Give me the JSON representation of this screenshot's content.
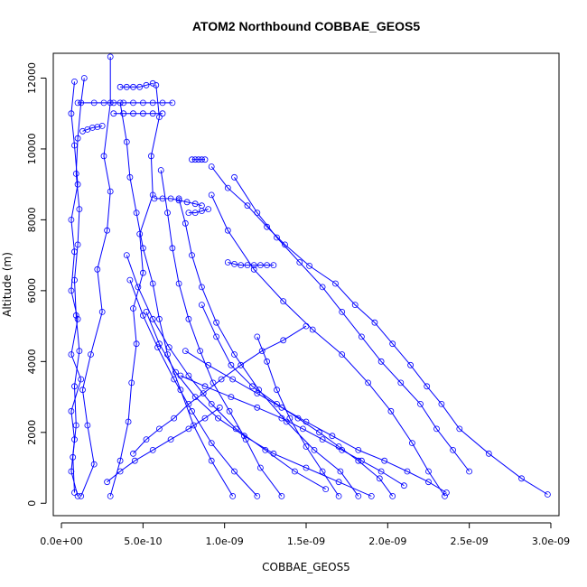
{
  "chart_data": {
    "type": "line",
    "title": "ATOM2 Northbound COBBAE_GEOS5",
    "xlabel": "COBBAE_GEOS5",
    "ylabel": "Altitude (m)",
    "xlim": [
      -5e-11,
      3.05e-09
    ],
    "ylim": [
      -350,
      12700
    ],
    "x_ticks": [
      0,
      5e-10,
      1e-09,
      1.5e-09,
      2e-09,
      2.5e-09,
      3e-09
    ],
    "x_tick_labels": [
      "0.0e+00",
      "5.0e-10",
      "1.0e-09",
      "1.5e-09",
      "2.0e-09",
      "2.5e-09",
      "3.0e-09"
    ],
    "y_ticks": [
      0,
      2000,
      4000,
      6000,
      8000,
      10000,
      12000
    ],
    "y_tick_labels": [
      "0",
      "2000",
      "4000",
      "6000",
      "8000",
      "10000",
      "12000"
    ],
    "grid": false,
    "line_color": "#0000ff",
    "marker": "open-circle",
    "series": [
      {
        "x": [
          1e-10,
          6e-11,
          8e-11,
          6e-11,
          1.2e-10,
          6e-11,
          1e-10,
          6e-11,
          8e-11,
          6e-11,
          1e-10,
          8e-11,
          6e-11,
          8e-11
        ],
        "y": [
          200,
          900,
          1800,
          2600,
          3500,
          4200,
          5200,
          6000,
          7100,
          8000,
          9000,
          10100,
          11000,
          11900
        ]
      },
      {
        "x": [
          8e-11,
          7e-11,
          9e-11,
          8e-11,
          1.1e-10,
          9e-11,
          8e-11,
          1e-10,
          1.1e-10,
          9e-11,
          1e-10,
          1.2e-10,
          1.4e-10
        ],
        "y": [
          300,
          1300,
          2200,
          3300,
          4300,
          5300,
          6300,
          7300,
          8300,
          9300,
          10300,
          11300,
          12000
        ]
      },
      {
        "x": [
          1.2e-10,
          2e-10,
          1.6e-10,
          1.3e-10,
          1.8e-10,
          2.5e-10,
          2.2e-10,
          2.8e-10,
          3e-10,
          2.6e-10,
          3e-10,
          3e-10
        ],
        "y": [
          200,
          1100,
          2200,
          3200,
          4200,
          5400,
          6600,
          7700,
          8800,
          9800,
          11300,
          12600
        ]
      },
      {
        "x": [
          3e-10,
          3.6e-10,
          4.1e-10,
          4.3e-10,
          4.6e-10,
          4.4e-10,
          5e-10,
          4.8e-10,
          5.6e-10,
          5.5e-10,
          6e-10,
          5.8e-10
        ],
        "y": [
          200,
          1200,
          2300,
          3400,
          4500,
          5500,
          6500,
          7600,
          8700,
          9800,
          10900,
          11800
        ]
      },
      {
        "x": [
          1.05e-09,
          9.2e-10,
          8.1e-10,
          7.3e-10,
          6.5e-10,
          6e-10,
          5.6e-10,
          5e-10,
          4.6e-10,
          4.2e-10,
          4e-10,
          3.6e-10
        ],
        "y": [
          200,
          1200,
          2200,
          3200,
          4200,
          5200,
          6200,
          7200,
          8200,
          9200,
          10200,
          11300
        ]
      },
      {
        "x": [
          1.35e-09,
          1.22e-09,
          1.13e-09,
          1.03e-09,
          9.3e-10,
          8.5e-10,
          7.8e-10,
          7.2e-10,
          6.8e-10,
          6.5e-10,
          6.1e-10
        ],
        "y": [
          200,
          1000,
          1800,
          2600,
          3400,
          4300,
          5200,
          6200,
          7200,
          8200,
          9400
        ]
      },
      {
        "x": [
          1.82e-09,
          1.71e-09,
          1.55e-09,
          1.38e-09,
          1.21e-09,
          1.06e-09,
          9.5e-10,
          8.6e-10,
          8e-10,
          7.6e-10,
          7.2e-10
        ],
        "y": [
          200,
          900,
          1500,
          2300,
          3200,
          4200,
          5100,
          6100,
          7000,
          7900,
          8600
        ]
      },
      {
        "x": [
          2.03e-09,
          1.95e-09,
          1.82e-09,
          1.7e-09,
          1.58e-09,
          1.45e-09,
          1.32e-09,
          1.17e-09,
          1.04e-09,
          9.5e-10,
          8.6e-10
        ],
        "y": [
          200,
          700,
          1200,
          1600,
          2000,
          2400,
          2800,
          3300,
          3900,
          4700,
          5600
        ]
      },
      {
        "x": [
          2.35e-09,
          2.25e-09,
          2.15e-09,
          2.02e-09,
          1.88e-09,
          1.72e-09,
          1.54e-09,
          1.36e-09,
          1.18e-09,
          1.02e-09,
          9.2e-10
        ],
        "y": [
          200,
          900,
          1700,
          2600,
          3400,
          4200,
          4900,
          5700,
          6600,
          7700,
          8700
        ]
      },
      {
        "x": [
          2.98e-09,
          2.82e-09,
          2.62e-09,
          2.44e-09,
          2.33e-09,
          2.24e-09,
          2.14e-09,
          2.03e-09,
          1.92e-09,
          1.8e-09,
          1.68e-09,
          1.52e-09,
          1.37e-09,
          1.26e-09,
          1.14e-09,
          1.02e-09,
          9.2e-10
        ],
        "y": [
          250,
          700,
          1400,
          2100,
          2800,
          3300,
          3900,
          4500,
          5100,
          5600,
          6200,
          6700,
          7300,
          7800,
          8400,
          8900,
          9500
        ]
      },
      {
        "x": [
          2.5e-09,
          2.4e-09,
          2.3e-09,
          2.2e-09,
          2.08e-09,
          1.96e-09,
          1.84e-09,
          1.72e-09,
          1.6e-09,
          1.46e-09,
          1.32e-09,
          1.2e-09,
          1.06e-09
        ],
        "y": [
          900,
          1500,
          2100,
          2800,
          3400,
          4000,
          4700,
          5400,
          6100,
          6800,
          7500,
          8200,
          9200
        ]
      },
      {
        "x": [
          1.62e-09,
          1.43e-09,
          1.25e-09,
          1.07e-09,
          9.2e-10,
          7.8e-10,
          6.6e-10,
          5.6e-10,
          4.7e-10,
          4e-10
        ],
        "y": [
          400,
          900,
          1500,
          2100,
          2800,
          3600,
          4400,
          5200,
          6100,
          7000
        ]
      },
      {
        "x": [
          1.9e-09,
          1.7e-09,
          1.5e-09,
          1.3e-09,
          1.12e-09,
          9.6e-10,
          8.2e-10,
          7e-10,
          6e-10,
          5.2e-10
        ],
        "y": [
          200,
          600,
          1000,
          1400,
          1900,
          2400,
          3000,
          3700,
          4500,
          5400
        ]
      },
      {
        "x": [
          1.2e-09,
          1.06e-09,
          9.2e-10,
          8e-10,
          6.9e-10,
          5.9e-10,
          5e-10,
          4.2e-10
        ],
        "y": [
          200,
          900,
          1700,
          2600,
          3500,
          4400,
          5300,
          6300
        ]
      },
      {
        "x": [
          4.4e-10,
          5.2e-10,
          6e-10,
          6.9e-10,
          7.8e-10,
          8.7e-10,
          9.8e-10,
          1.1e-09,
          1.23e-09,
          1.36e-09,
          1.5e-09
        ],
        "y": [
          1400,
          1800,
          2100,
          2400,
          2800,
          3100,
          3500,
          3900,
          4300,
          4600,
          5000
        ]
      },
      {
        "x": [
          1.7e-09,
          1.6e-09,
          1.5e-09,
          1.4e-09,
          1.32e-09,
          1.26e-09,
          1.2e-09
        ],
        "y": [
          200,
          900,
          1600,
          2400,
          3200,
          4000,
          4700
        ]
      },
      {
        "x": [
          2.36e-09,
          2.25e-09,
          2.12e-09,
          1.98e-09,
          1.82e-09,
          1.66e-09,
          1.5e-09,
          1.35e-09,
          1.2e-09,
          1.05e-09,
          9e-10,
          7.6e-10
        ],
        "y": [
          300,
          600,
          900,
          1200,
          1500,
          1900,
          2300,
          2700,
          3100,
          3500,
          3900,
          4300
        ]
      },
      {
        "x": [
          2.1e-09,
          1.96e-09,
          1.84e-09,
          1.72e-09,
          1.6e-09,
          1.48e-09,
          1.35e-09,
          1.2e-09,
          1.04e-09,
          8.8e-10,
          7.3e-10
        ],
        "y": [
          500,
          900,
          1200,
          1500,
          1800,
          2100,
          2400,
          2700,
          3000,
          3300,
          3600
        ]
      },
      {
        "x": [
          2.8e-10,
          3.6e-10,
          4.5e-10,
          5.6e-10,
          6.7e-10,
          7.8e-10,
          8.8e-10,
          9.7e-10
        ],
        "y": [
          600,
          900,
          1200,
          1500,
          1800,
          2100,
          2400,
          2700
        ]
      },
      {
        "x": [
          1e-10,
          2e-10,
          2.6e-10,
          3.2e-10,
          3.8e-10,
          4.4e-10,
          5e-10,
          5.6e-10,
          6.2e-10,
          6.8e-10
        ],
        "y": [
          11300,
          11300,
          11300,
          11300,
          11300,
          11300,
          11300,
          11300,
          11300,
          11300
        ]
      },
      {
        "x": [
          3.2e-10,
          3.8e-10,
          4.4e-10,
          5e-10,
          5.6e-10,
          6.2e-10
        ],
        "y": [
          11000,
          11000,
          11000,
          11000,
          11000,
          11000
        ]
      },
      {
        "x": [
          1.3e-10,
          1.6e-10,
          1.9e-10,
          2.2e-10,
          2.5e-10
        ],
        "y": [
          10500,
          10550,
          10600,
          10620,
          10650
        ]
      },
      {
        "x": [
          8e-10,
          8.2e-10,
          8.4e-10,
          8.6e-10,
          8.8e-10
        ],
        "y": [
          9700,
          9700,
          9700,
          9700,
          9700
        ]
      },
      {
        "x": [
          5.7e-10,
          6.2e-10,
          6.7e-10,
          7.2e-10,
          7.7e-10,
          8.2e-10,
          8.6e-10
        ],
        "y": [
          8600,
          8600,
          8600,
          8550,
          8500,
          8450,
          8400
        ]
      },
      {
        "x": [
          3.6e-10,
          4e-10,
          4.4e-10,
          4.8e-10,
          5.2e-10,
          5.6e-10
        ],
        "y": [
          11750,
          11750,
          11750,
          11750,
          11800,
          11850
        ]
      },
      {
        "x": [
          7.8e-10,
          8.2e-10,
          8.6e-10,
          9e-10
        ],
        "y": [
          8200,
          8200,
          8250,
          8300
        ]
      },
      {
        "x": [
          1.02e-09,
          1.06e-09,
          1.1e-09,
          1.14e-09,
          1.18e-09,
          1.22e-09,
          1.26e-09,
          1.3e-09
        ],
        "y": [
          6800,
          6750,
          6720,
          6720,
          6720,
          6720,
          6720,
          6720
        ]
      }
    ]
  }
}
